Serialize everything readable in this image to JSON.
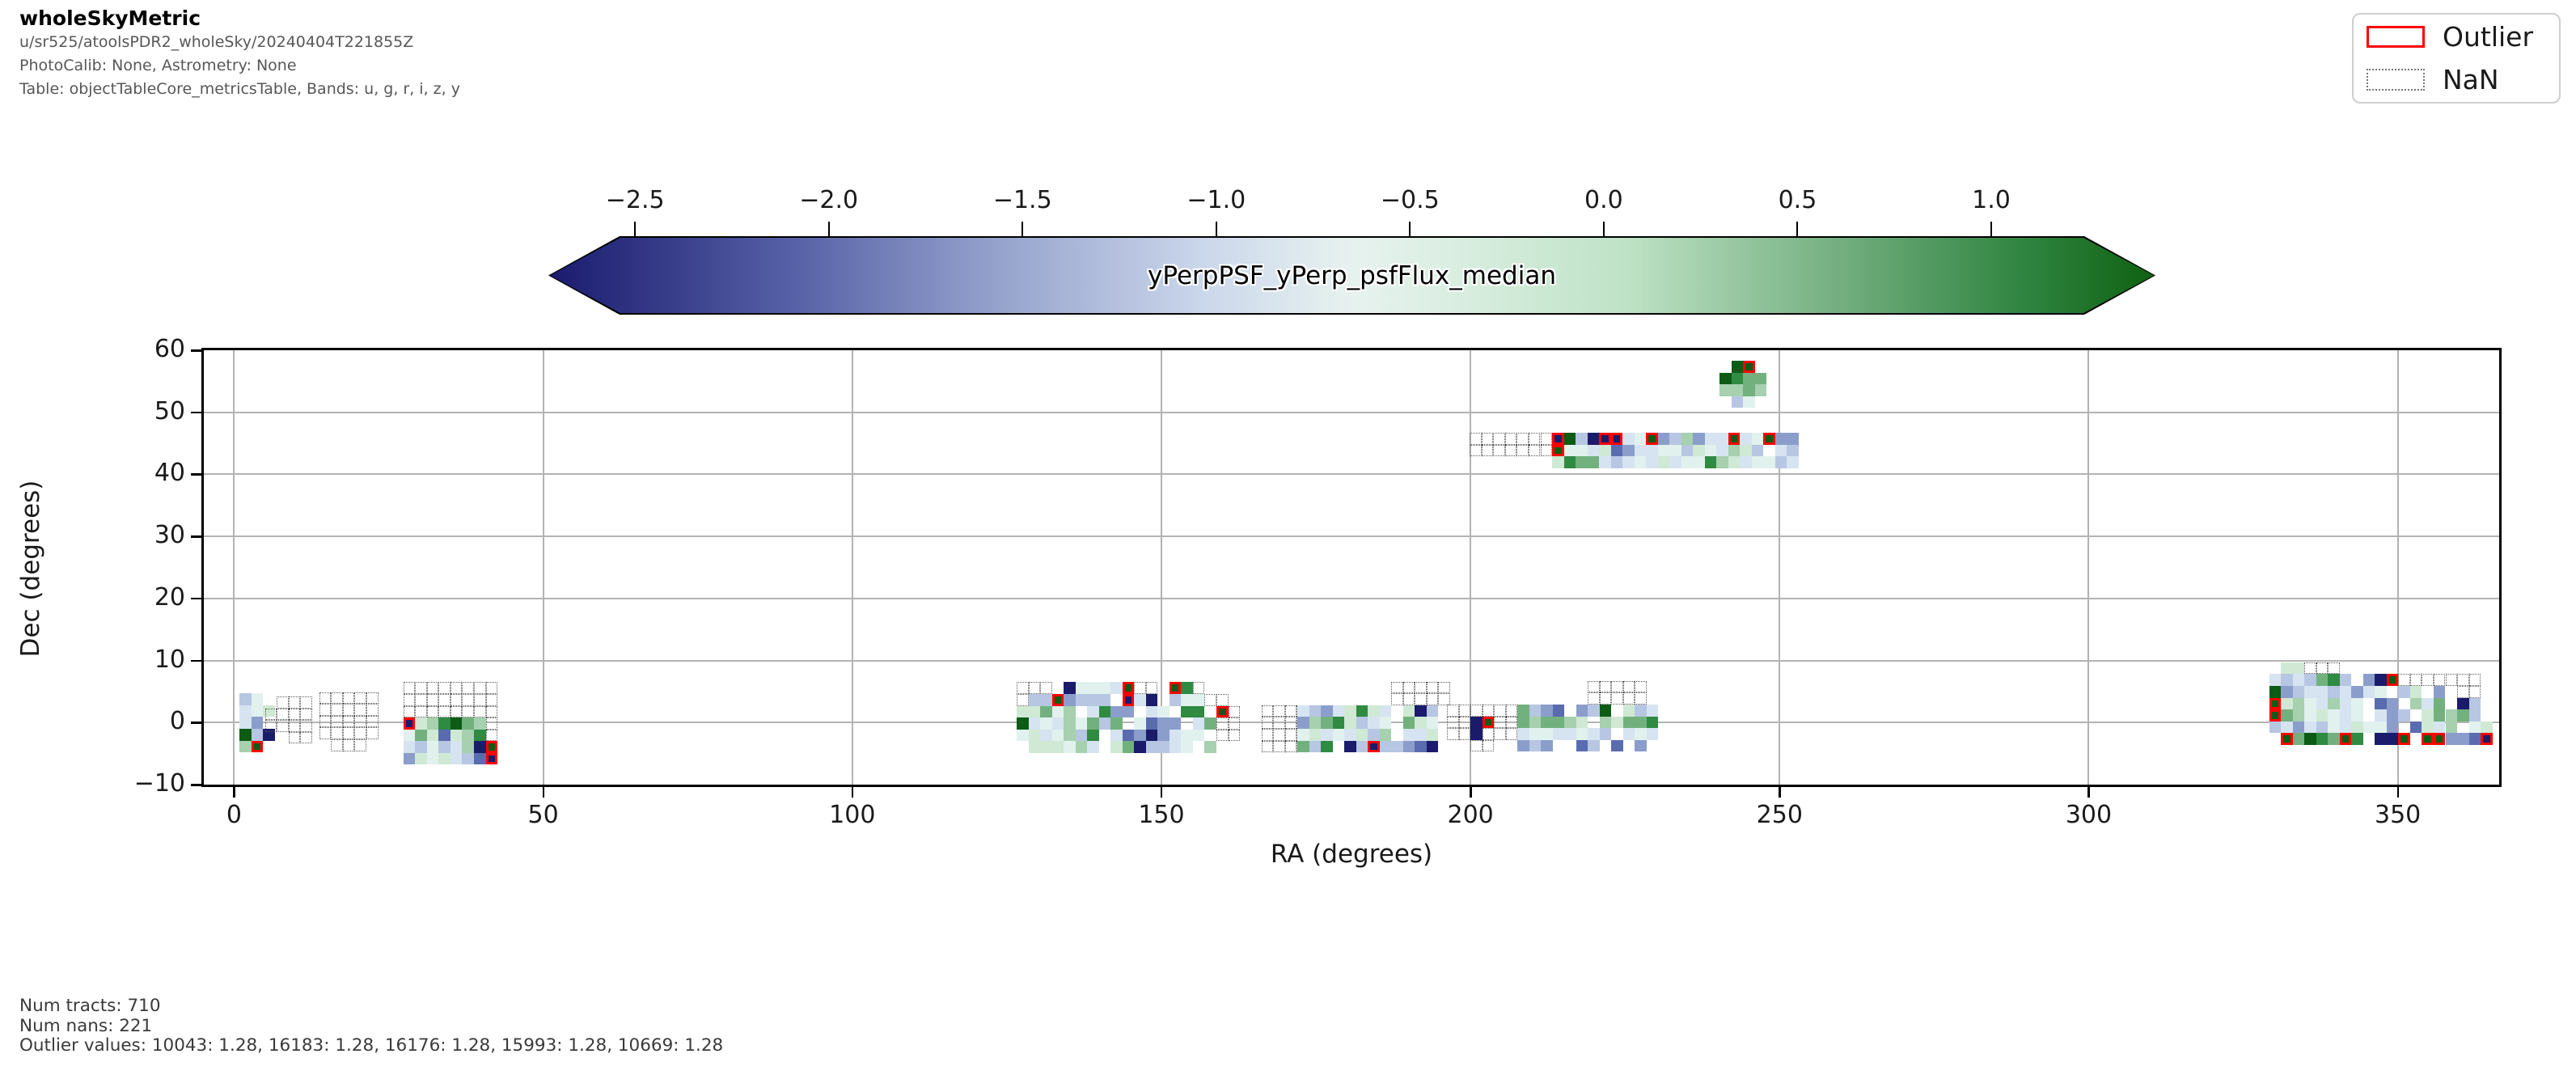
{
  "header": {
    "title": "wholeSkyMetric",
    "line1": "u/sr525/atoolsPDR2_wholeSky/20240404T221855Z",
    "line2": "PhotoCalib: None, Astrometry: None",
    "line3": "Table: objectTableCore_metricsTable, Bands: u, g, r, i, z, y"
  },
  "legend": {
    "items": [
      {
        "label": "Outlier",
        "swatch": "red-solid-box"
      },
      {
        "label": "NaN",
        "swatch": "gray-dotted-box"
      }
    ]
  },
  "colorbar": {
    "label": "yPerpPSF_yPerp_psfFlux_median",
    "tick_labels": [
      "−2.5",
      "−2.0",
      "−1.5",
      "−1.0",
      "−0.5",
      "0.0",
      "0.5",
      "1.0"
    ],
    "tick_values": [
      -2.5,
      -2.0,
      -1.5,
      -1.0,
      -0.5,
      0.0,
      0.5,
      1.0
    ],
    "vmin": -2.54,
    "vmax": 1.24,
    "gradient_stops": [
      [
        0,
        "#1b1b6e"
      ],
      [
        15,
        "#5560a6"
      ],
      [
        28,
        "#96a3cd"
      ],
      [
        41,
        "#ccd8eb"
      ],
      [
        50,
        "#e7f2ef"
      ],
      [
        55,
        "#ddefe4"
      ],
      [
        67,
        "#bfe3c6"
      ],
      [
        80,
        "#76b082"
      ],
      [
        92,
        "#2f8440"
      ],
      [
        100,
        "#0f6212"
      ]
    ]
  },
  "footer": {
    "lines": [
      "Num tracts: 710",
      "Num nans: 221",
      "Outlier values: 10043: 1.28, 16183: 1.28, 16176: 1.28, 15993: 1.28, 10669: 1.28"
    ]
  },
  "chart_data": {
    "type": "heatmap",
    "title": "wholeSkyMetric",
    "metric": "yPerpPSF_yPerp_psfFlux_median",
    "num_tracts": 710,
    "num_nans": 221,
    "outlier_values": {
      "10043": 1.28,
      "16183": 1.28,
      "16176": 1.28,
      "15993": 1.28,
      "10669": 1.28
    },
    "axes": {
      "xlabel": "RA (degrees)",
      "ylabel": "Dec (degrees)",
      "xticks": [
        0,
        50,
        100,
        150,
        200,
        250,
        300,
        350
      ],
      "yticks": [
        -10,
        0,
        10,
        20,
        30,
        40,
        50,
        60
      ],
      "xgrid": [
        0,
        50,
        100,
        150,
        200,
        250,
        300,
        350
      ],
      "ygrid": [
        0,
        10,
        20,
        30,
        40,
        50
      ],
      "xlim": [
        -4.9,
        366.4
      ],
      "ylim": [
        -10,
        60
      ],
      "grid": true
    },
    "legend_position": "top-right",
    "cell_deg": 1.9,
    "palette": {
      "0": {
        "fill": "#1b1b6b"
      },
      "1": {
        "fill": "#5a6bb0"
      },
      "2": {
        "fill": "#8b9ecb"
      },
      "3": {
        "fill": "#b7c6e2"
      },
      "4": {
        "fill": "#d6e4f1"
      },
      "5": {
        "fill": "#e1f1ee"
      },
      "6": {
        "fill": "#cfe9d4"
      },
      "7": {
        "fill": "#a6d0ae"
      },
      "8": {
        "fill": "#72b17e"
      },
      "9": {
        "fill": "#2f8a42"
      },
      "g": {
        "fill": "#0d5c15"
      },
      "G": {
        "fill": "#0d5c15",
        "outlier": true
      },
      "N": {
        "fill": "#1b1b6b",
        "outlier": true
      },
      ".": {
        "nan": true
      }
    },
    "patches": [
      {
        "name": "tract-patch-ra0",
        "ra0": 0.9,
        "dec0": 4.7,
        "rows": [
          "35",
          "456",
          "42",
          "g30",
          "7G"
        ]
      },
      {
        "name": "nan-patch-ra8",
        "ra0": 5.0,
        "dec0": 4.2,
        "rows": [
          " ...",
          "....",
          "....",
          "  .."
        ]
      },
      {
        "name": "nan-patch-ra16",
        "ra0": 13.8,
        "dec0": 4.9,
        "rows": [
          ".....",
          ".....",
          ".....",
          ".....",
          " ... "
        ]
      },
      {
        "name": "tract-patch-ra30",
        "ra0": 27.4,
        "dec0": 6.5,
        "rows": [
          "........",
          "........",
          "........",
          "N679g87.",
          "5861679.",
          "4353470G",
          "2656431N"
        ]
      },
      {
        "name": "tract-patch-ra140",
        "ra0": 126.6,
        "dec0": 6.5,
        "rows": [
          "... 05554G.. G9.",
          ".33G2333 N40 355..",
          "66857 4922 45 99 G.",
          "g45475838 5122 48..",
          "5645739 41202455 ..",
          " 666574 6803345 7"
        ]
      },
      {
        "name": "nan-patch-ra168",
        "ra0": 166.2,
        "dec0": 2.8,
        "rows": [
          "....",
          "....",
          "....",
          "...."
        ]
      },
      {
        "name": "tract-patch-ra180",
        "ra0": 172.0,
        "dec0": 6.6,
        "rows": [
          "        .....",
          "        .....",
          "43246964 603",
          "27896345 865",
          "56454637 446",
          "839 03N33210"
        ]
      },
      {
        "name": "tract-patch-ra210",
        "ra0": 196.2,
        "dec0": 6.7,
        "rows": [
          "            .....",
          "            .....",
          "......8321 23g 634",
          "..0G..878876 76889",
          "..0...45544543 454",
          "  ..  232  13 1 2"
        ]
      },
      {
        "name": "tract-patch-dec45",
        "ra0": 199.9,
        "dec0": 46.7,
        "rows": [
          ".......Ng30NN45G237244G45G22",
          ".......G55461244553654763 43",
          "       698843454645597645534"
        ]
      },
      {
        "name": "tract-patch-dec55",
        "ra0": 240.3,
        "dec0": 58.3,
        "rows": [
          " gG",
          "g988",
          "7787",
          " 35"
        ]
      },
      {
        "name": "tract-patch-ra345",
        "ra0": 327.3,
        "dec0": 9.7,
        "rows": [
          "  66...",
          " 4343893 20G.......",
          " g234434245 36 2 ..",
          " G6754745 12 748 03",
          " G8756545 423 68783",
          " 34243546552 1647 56",
          "  G8g98G9 00G GG221N"
        ]
      }
    ]
  }
}
